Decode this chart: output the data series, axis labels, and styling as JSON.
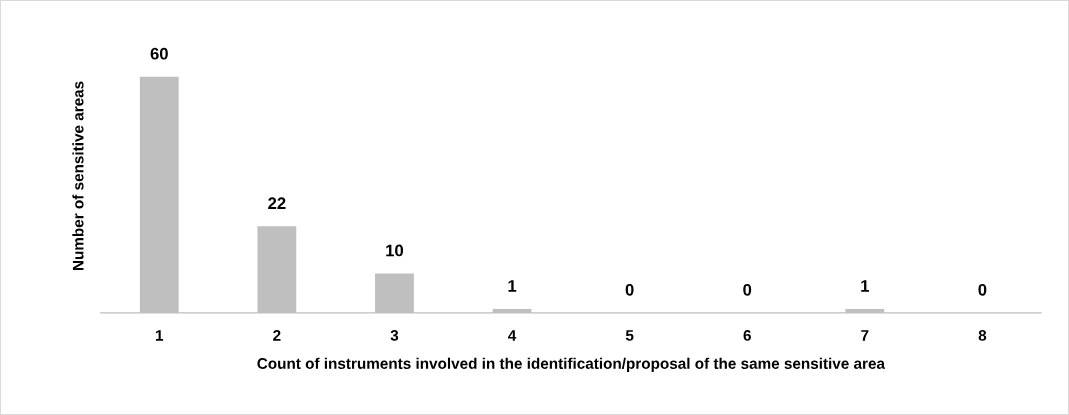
{
  "chart_data": {
    "type": "bar",
    "categories": [
      "1",
      "2",
      "3",
      "4",
      "5",
      "6",
      "7",
      "8"
    ],
    "values": [
      60,
      22,
      10,
      1,
      0,
      0,
      1,
      0
    ],
    "color": "#bfbfbf",
    "xlabel": "Count of instruments involved in the identification/proposal of the same sensitive area",
    "ylabel": "Number of sensitive areas",
    "data_labels": true,
    "grid": false,
    "legend": false,
    "tick_labels": "x"
  }
}
